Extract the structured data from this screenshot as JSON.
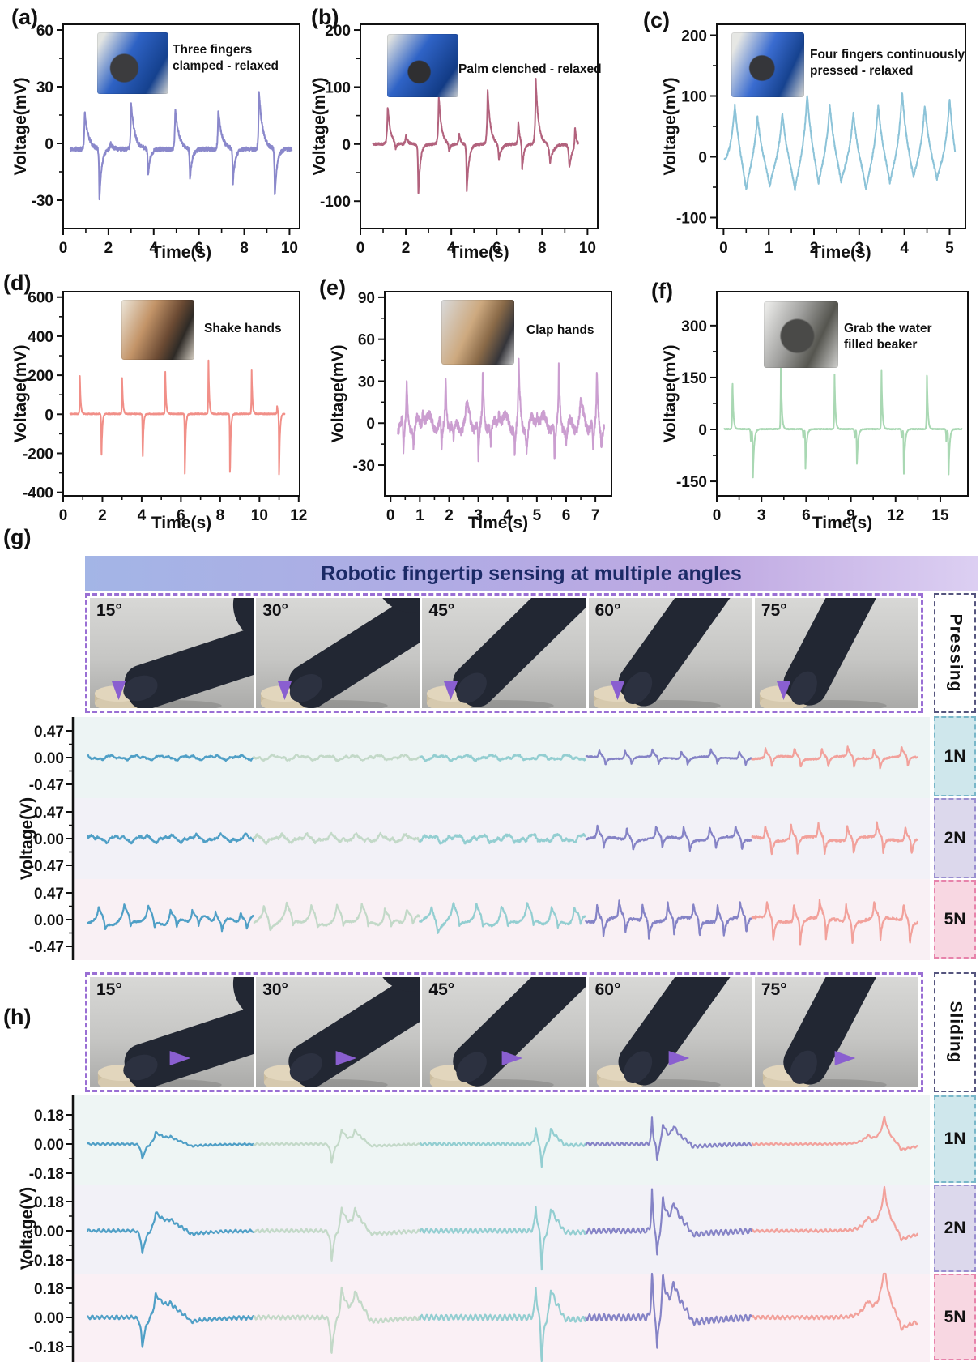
{
  "figure": {
    "kind": "scientific multi-panel voltage figure",
    "shared_xlabel": "Time(s)"
  },
  "chart_data": [
    {
      "id": "a",
      "type": "line",
      "panel_label": "(a)",
      "caption": "Three fingers\nclamped - relaxed",
      "color": "#8a88cb",
      "xlabel": "Time(s)",
      "ylabel": "Voltage(mV)",
      "xticks": [
        "0",
        "2",
        "4",
        "6",
        "8",
        "10"
      ],
      "yticks": [
        "60",
        "30",
        "0",
        "-30"
      ],
      "xaxis": [
        0,
        10.45
      ],
      "ylim": [
        -45,
        63
      ],
      "xspan": [
        0.3,
        10.1
      ],
      "baseline": -3,
      "noise": 1.1,
      "events": [
        [
          0.95,
          20,
          0.025,
          0.16
        ],
        [
          1.6,
          -28,
          0.02,
          0.1
        ],
        [
          2.1,
          3,
          0.05,
          0.1
        ],
        [
          3.0,
          25,
          0.025,
          0.16
        ],
        [
          3.75,
          -14,
          0.02,
          0.1
        ],
        [
          4.95,
          22,
          0.025,
          0.16
        ],
        [
          5.6,
          -17,
          0.02,
          0.1
        ],
        [
          6.85,
          21,
          0.025,
          0.16
        ],
        [
          7.5,
          -19,
          0.02,
          0.1
        ],
        [
          8.65,
          31,
          0.025,
          0.16
        ],
        [
          9.35,
          -26,
          0.02,
          0.1
        ]
      ]
    },
    {
      "id": "b",
      "type": "line",
      "panel_label": "(b)",
      "caption": "Palm clenched - relaxed",
      "color": "#b2627d",
      "xlabel": "Time(s)",
      "ylabel": "Voltage(mV)",
      "xticks": [
        "0",
        "2",
        "4",
        "6",
        "8",
        "10"
      ],
      "yticks": [
        "200",
        "100",
        "0",
        "-100"
      ],
      "xaxis": [
        0,
        10.45
      ],
      "ylim": [
        -148,
        210
      ],
      "xspan": [
        0.55,
        9.6
      ],
      "baseline": 0,
      "noise": 2.2,
      "events": [
        [
          1.2,
          68,
          0.03,
          0.12
        ],
        [
          1.55,
          -12,
          0.03,
          0.06
        ],
        [
          2.0,
          16,
          0.03,
          0.08
        ],
        [
          2.55,
          -90,
          0.02,
          0.09
        ],
        [
          3.45,
          86,
          0.03,
          0.12
        ],
        [
          3.9,
          -14,
          0.03,
          0.08
        ],
        [
          4.35,
          20,
          0.03,
          0.06
        ],
        [
          4.68,
          -86,
          0.02,
          0.1
        ],
        [
          5.6,
          97,
          0.03,
          0.12
        ],
        [
          6.1,
          -28,
          0.04,
          0.12
        ],
        [
          6.95,
          40,
          0.025,
          0.07
        ],
        [
          7.12,
          -50,
          0.02,
          0.08
        ],
        [
          7.72,
          115,
          0.03,
          0.12
        ],
        [
          8.35,
          -33,
          0.05,
          0.15
        ],
        [
          9.2,
          -42,
          0.04,
          0.12
        ],
        [
          9.45,
          36,
          0.02,
          0.06
        ]
      ]
    },
    {
      "id": "c",
      "type": "line",
      "panel_label": "(c)",
      "caption": "Four fingers continuously\npressed - relaxed",
      "color": "#8cc3d8",
      "xlabel": "Time(s)",
      "ylabel": "Voltage(mV)",
      "xticks": [
        "0",
        "1",
        "2",
        "3",
        "4",
        "5"
      ],
      "yticks": [
        "200",
        "100",
        "0",
        "-100"
      ],
      "xaxis": [
        -0.15,
        5.35
      ],
      "ylim": [
        -118,
        218
      ],
      "xspan": [
        0.02,
        5.12
      ],
      "baseline": -15,
      "noise": 2.5,
      "events": [
        [
          0.25,
          108,
          0.1,
          0.13
        ],
        [
          0.5,
          -62,
          0.12,
          0.12
        ],
        [
          0.75,
          92,
          0.1,
          0.13
        ],
        [
          1.02,
          -50,
          0.12,
          0.12
        ],
        [
          1.3,
          95,
          0.1,
          0.13
        ],
        [
          1.58,
          -58,
          0.12,
          0.12
        ],
        [
          1.85,
          128,
          0.1,
          0.13
        ],
        [
          2.1,
          -55,
          0.12,
          0.12
        ],
        [
          2.35,
          110,
          0.1,
          0.13
        ],
        [
          2.6,
          -48,
          0.12,
          0.12
        ],
        [
          2.87,
          95,
          0.1,
          0.13
        ],
        [
          3.15,
          -57,
          0.12,
          0.12
        ],
        [
          3.42,
          110,
          0.1,
          0.13
        ],
        [
          3.68,
          -50,
          0.12,
          0.12
        ],
        [
          3.95,
          130,
          0.1,
          0.13
        ],
        [
          4.2,
          -45,
          0.12,
          0.12
        ],
        [
          4.45,
          107,
          0.1,
          0.13
        ],
        [
          4.72,
          -42,
          0.12,
          0.12
        ],
        [
          5.0,
          122,
          0.1,
          0.13
        ],
        [
          5.2,
          -45,
          0.12,
          0.12
        ]
      ]
    },
    {
      "id": "d",
      "type": "line",
      "panel_label": "(d)",
      "caption": "Shake hands",
      "color": "#f18f88",
      "xlabel": "Time(s)",
      "ylabel": "Voltage(mV)",
      "xticks": [
        "0",
        "2",
        "4",
        "6",
        "8",
        "10",
        "12"
      ],
      "yticks": [
        "600",
        "400",
        "200",
        "0",
        "-200",
        "-400"
      ],
      "xaxis": [
        0,
        12.05
      ],
      "ylim": [
        -418,
        628
      ],
      "xspan": [
        0.35,
        11.3
      ],
      "baseline": 2,
      "noise": 3,
      "events": [
        [
          0.85,
          205,
          0.012,
          0.04
        ],
        [
          1.95,
          -242,
          0.012,
          0.04
        ],
        [
          3.0,
          212,
          0.012,
          0.04
        ],
        [
          4.05,
          -247,
          0.012,
          0.04
        ],
        [
          5.2,
          240,
          0.012,
          0.04
        ],
        [
          6.2,
          -332,
          0.012,
          0.04
        ],
        [
          7.4,
          300,
          0.012,
          0.04
        ],
        [
          8.5,
          -332,
          0.012,
          0.04
        ],
        [
          9.6,
          240,
          0.012,
          0.04
        ],
        [
          10.9,
          45,
          0.015,
          0.04
        ],
        [
          11.0,
          -348,
          0.012,
          0.04
        ]
      ]
    },
    {
      "id": "e",
      "type": "line",
      "panel_label": "(e)",
      "caption": "Clap hands",
      "color": "#cb9ed0",
      "xlabel": "Time(s)",
      "ylabel": "Voltage(mV)",
      "xticks": [
        "0",
        "1",
        "2",
        "3",
        "4",
        "5",
        "6",
        "7"
      ],
      "yticks": [
        "90",
        "60",
        "30",
        "0",
        "-30"
      ],
      "xaxis": [
        -0.2,
        7.55
      ],
      "ylim": [
        -52,
        94
      ],
      "xspan": [
        0.25,
        7.3
      ],
      "baseline": 0,
      "noise": 3.2,
      "wobble": {
        "amp": 5.5,
        "freq": 2.3
      },
      "events": [
        [
          0.55,
          33,
          0.02,
          0.04
        ],
        [
          0.44,
          -28,
          0.015,
          0.04
        ],
        [
          0.78,
          -21,
          0.02,
          0.05
        ],
        [
          1.1,
          13,
          0.04,
          0.08
        ],
        [
          1.88,
          38,
          0.02,
          0.04
        ],
        [
          1.74,
          -26,
          0.015,
          0.05
        ],
        [
          2.15,
          -16,
          0.03,
          0.07
        ],
        [
          2.6,
          11,
          0.04,
          0.08
        ],
        [
          3.15,
          39,
          0.02,
          0.04
        ],
        [
          3.0,
          -31,
          0.015,
          0.05
        ],
        [
          3.42,
          -18,
          0.025,
          0.06
        ],
        [
          3.7,
          13,
          0.04,
          0.07
        ],
        [
          4.38,
          45,
          0.02,
          0.04
        ],
        [
          4.24,
          -23,
          0.015,
          0.05
        ],
        [
          4.65,
          -18,
          0.025,
          0.06
        ],
        [
          5.0,
          11,
          0.04,
          0.08
        ],
        [
          5.75,
          44,
          0.02,
          0.04
        ],
        [
          5.6,
          -33,
          0.015,
          0.05
        ],
        [
          6.0,
          -16,
          0.03,
          0.07
        ],
        [
          6.5,
          14,
          0.04,
          0.07
        ],
        [
          7.05,
          39,
          0.02,
          0.04
        ],
        [
          6.92,
          -26,
          0.015,
          0.05
        ],
        [
          7.2,
          -13,
          0.02,
          0.05
        ]
      ]
    },
    {
      "id": "f",
      "type": "line",
      "panel_label": "(f)",
      "caption": "Grab the water\nfilled beaker",
      "color": "#a9d8b3",
      "xlabel": "Time(s)",
      "ylabel": "Voltage(mV)",
      "xticks": [
        "0",
        "3",
        "6",
        "9",
        "12",
        "15"
      ],
      "yticks": [
        "300",
        "150",
        "0",
        "-150"
      ],
      "xaxis": [
        0,
        16.85
      ],
      "ylim": [
        -192,
        398
      ],
      "xspan": [
        0.5,
        16.45
      ],
      "baseline": 1,
      "noise": 1.3,
      "events": [
        [
          1.05,
          150,
          0.018,
          0.06
        ],
        [
          2.28,
          -34,
          0.02,
          0.04
        ],
        [
          2.42,
          -152,
          0.015,
          0.08
        ],
        [
          4.3,
          207,
          0.018,
          0.06
        ],
        [
          5.8,
          -28,
          0.02,
          0.04
        ],
        [
          5.95,
          -117,
          0.015,
          0.08
        ],
        [
          7.9,
          167,
          0.018,
          0.06
        ],
        [
          9.25,
          -30,
          0.02,
          0.04
        ],
        [
          9.4,
          -107,
          0.015,
          0.08
        ],
        [
          11.05,
          180,
          0.018,
          0.06
        ],
        [
          12.4,
          -30,
          0.02,
          0.04
        ],
        [
          12.55,
          -137,
          0.015,
          0.08
        ],
        [
          14.1,
          180,
          0.018,
          0.06
        ],
        [
          15.4,
          -35,
          0.02,
          0.04
        ],
        [
          15.55,
          -150,
          0.015,
          0.07
        ]
      ]
    },
    {
      "id": "g",
      "type": "line-grid",
      "section_label": "(g)",
      "title": "Robotic fingertip sensing at multiple angles",
      "mode_label": "Pressing",
      "angles": [
        "15°",
        "30°",
        "45°",
        "60°",
        "75°"
      ],
      "angle_colors": [
        "#4f9fc6",
        "#c3d9c8",
        "#93ced1",
        "#8583c6",
        "#f2a19b"
      ],
      "ylabel": "Voltage(V)",
      "ytick_labels": [
        "0.47",
        "0.00",
        "-0.47"
      ],
      "ytick_value": 0.47,
      "forces": [
        "1N",
        "2N",
        "5N"
      ],
      "rows": [
        {
          "force": "1N",
          "segments": [
            {
              "style": "wiggle",
              "a": 0.05
            },
            {
              "style": "wiggle",
              "a": 0.055
            },
            {
              "style": "wiggle",
              "a": 0.06
            },
            {
              "style": "spiky",
              "up": 0.13,
              "dn": -0.13,
              "n": 6
            },
            {
              "style": "spiky",
              "up": 0.17,
              "dn": -0.19,
              "n": 6
            }
          ]
        },
        {
          "force": "2N",
          "segments": [
            {
              "style": "wiggle",
              "a": 0.08
            },
            {
              "style": "wiggle",
              "a": 0.085
            },
            {
              "style": "wiggle",
              "a": 0.09
            },
            {
              "style": "spiky",
              "up": 0.21,
              "dn": -0.21,
              "n": 6
            },
            {
              "style": "spiky",
              "up": 0.25,
              "dn": -0.29,
              "n": 6
            }
          ]
        },
        {
          "force": "5N",
          "segments": [
            {
              "style": "bumpy",
              "up": 0.2,
              "dn": -0.2,
              "n": 7
            },
            {
              "style": "bumpy",
              "up": 0.21,
              "dn": -0.19,
              "n": 7
            },
            {
              "style": "bumpy",
              "up": 0.22,
              "dn": -0.2,
              "n": 7
            },
            {
              "style": "spiky",
              "up": 0.29,
              "dn": -0.32,
              "n": 7
            },
            {
              "style": "spiky",
              "up": 0.31,
              "dn": -0.43,
              "n": 6
            }
          ]
        }
      ]
    },
    {
      "id": "h",
      "type": "line-grid",
      "section_label": "(h)",
      "mode_label": "Sliding",
      "angles": [
        "15°",
        "30°",
        "45°",
        "60°",
        "75°"
      ],
      "angle_colors": [
        "#4f9fc6",
        "#c3d9c8",
        "#93ced1",
        "#8583c6",
        "#f2a19b"
      ],
      "ylabel": "Voltage(V)",
      "ytick_labels": [
        "0.18",
        "0.00",
        "-0.18"
      ],
      "ytick_value": 0.18,
      "forces": [
        "1N",
        "2N",
        "5N"
      ],
      "templates": [
        {
          "ripple": 0.006,
          "events": [
            [
              0.33,
              -0.1,
              0.01,
              0.02
            ],
            [
              0.41,
              0.075,
              0.015,
              0.09
            ],
            [
              0.5,
              0.02,
              0.02,
              0.05
            ],
            [
              0.62,
              -0.022,
              0.03,
              0.12
            ]
          ]
        },
        {
          "ripple": 0.007,
          "events": [
            [
              0.47,
              -0.13,
              0.008,
              0.015
            ],
            [
              0.53,
              0.095,
              0.01,
              0.04
            ],
            [
              0.61,
              0.075,
              0.015,
              0.06
            ],
            [
              0.7,
              -0.028,
              0.02,
              0.12
            ]
          ]
        },
        {
          "ripple": 0.01,
          "events": [
            [
              0.7,
              0.1,
              0.008,
              0.01
            ],
            [
              0.735,
              -0.16,
              0.006,
              0.012
            ],
            [
              0.79,
              0.095,
              0.01,
              0.05
            ],
            [
              0.87,
              -0.022,
              0.02,
              0.1
            ]
          ]
        },
        {
          "ripple": 0.012,
          "events": [
            [
              0.4,
              0.16,
              0.006,
              0.008
            ],
            [
              0.43,
              -0.12,
              0.005,
              0.01
            ],
            [
              0.465,
              0.135,
              0.008,
              0.03
            ],
            [
              0.53,
              0.1,
              0.02,
              0.06
            ],
            [
              0.64,
              -0.03,
              0.02,
              0.12
            ]
          ]
        },
        {
          "ripple": 0.006,
          "events": [
            [
              0.7,
              0.05,
              0.04,
              0.04
            ],
            [
              0.8,
              0.165,
              0.03,
              0.035
            ],
            [
              0.9,
              -0.045,
              0.02,
              0.09
            ]
          ]
        }
      ],
      "rows": [
        {
          "force": "1N",
          "scale": 1
        },
        {
          "force": "2N",
          "scale": 1.55
        },
        {
          "force": "5N",
          "scale": 1.95
        }
      ]
    }
  ]
}
